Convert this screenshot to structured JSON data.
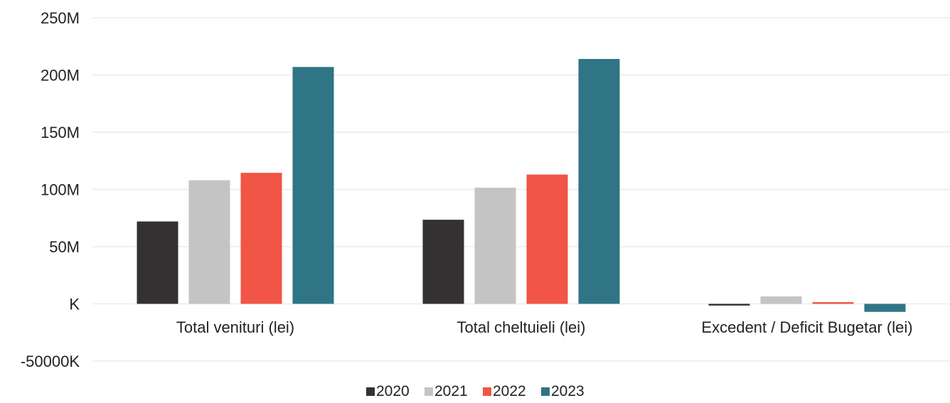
{
  "chart_data": {
    "type": "bar",
    "categories": [
      "Total venituri (lei)",
      "Total cheltuieli (lei)",
      "Excedent / Deficit Bugetar (lei)"
    ],
    "series": [
      {
        "name": "2020",
        "color": "#333132",
        "values": [
          72000000,
          73500000,
          -1500000
        ]
      },
      {
        "name": "2021",
        "color": "#c4c4c4",
        "values": [
          108000000,
          101500000,
          6500000
        ]
      },
      {
        "name": "2022",
        "color": "#f05545",
        "values": [
          114500000,
          113000000,
          1500000
        ]
      },
      {
        "name": "2023",
        "color": "#2f7585",
        "values": [
          207000000,
          214000000,
          -7000000
        ]
      }
    ],
    "yticks": [
      250000000,
      200000000,
      150000000,
      100000000,
      50000000,
      0,
      -50000000
    ],
    "ytick_labels": [
      "250M",
      "200M",
      "150M",
      "100M",
      "50M",
      "K",
      "-50000K"
    ],
    "ylim": [
      -50000000,
      250000000
    ],
    "grid": true,
    "legend_position": "bottom"
  }
}
